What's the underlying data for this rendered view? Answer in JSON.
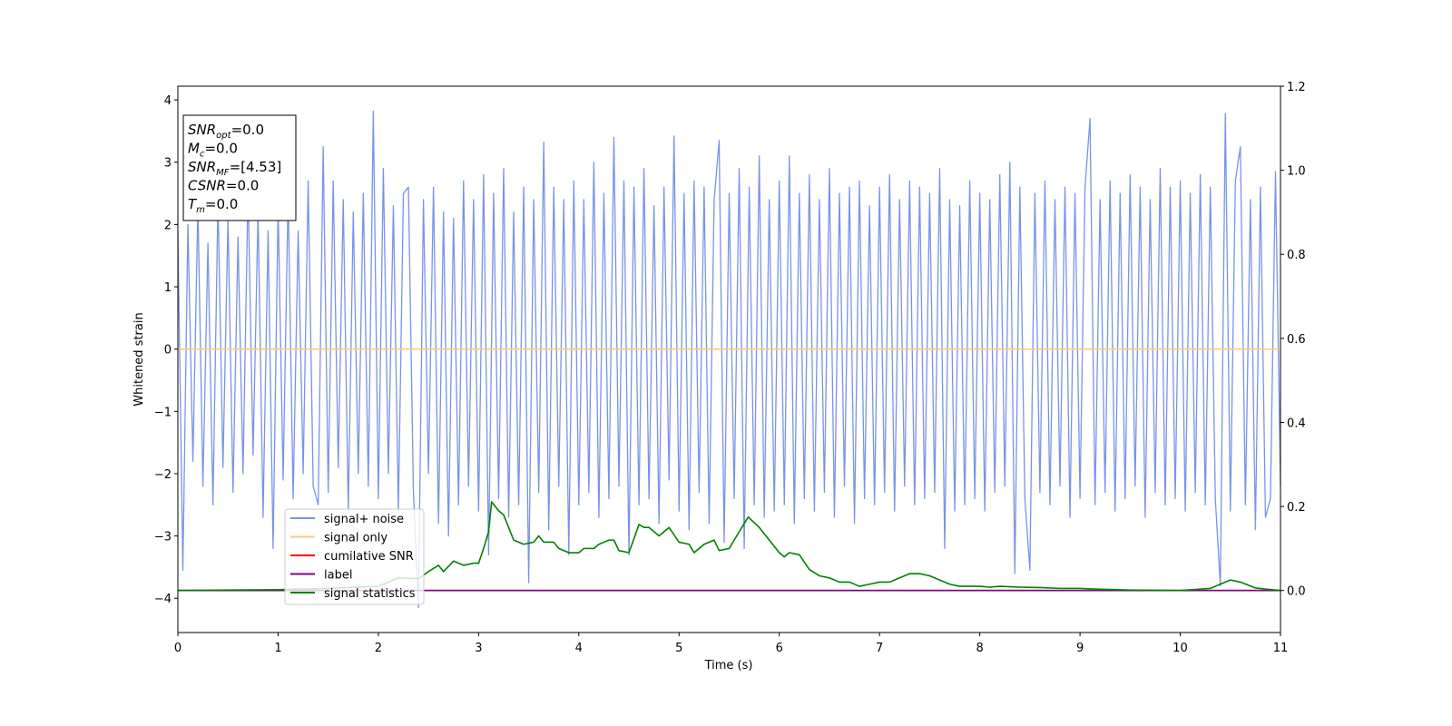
{
  "chart_data": {
    "type": "line",
    "xlabel": "Time (s)",
    "ylabel": "Whitened strain",
    "xlim": [
      0,
      11
    ],
    "xticks": [
      0,
      1,
      2,
      3,
      4,
      5,
      6,
      7,
      8,
      9,
      10,
      11
    ],
    "ylim": [
      -4.55,
      4.22
    ],
    "yticks": [
      {
        "value": -4,
        "label": "−4"
      },
      {
        "value": -3,
        "label": "−3"
      },
      {
        "value": -2,
        "label": "−2"
      },
      {
        "value": -1,
        "label": "−1"
      },
      0,
      1,
      2,
      3,
      4
    ],
    "y2lim": [
      -0.1,
      1.2
    ],
    "y2ticks": [
      {
        "value": 0,
        "label": "0.0"
      },
      {
        "value": 0.2,
        "label": "0.2"
      },
      {
        "value": 0.4,
        "label": "0.4"
      },
      {
        "value": 0.6,
        "label": "0.6"
      },
      {
        "value": 0.8,
        "label": "0.8"
      },
      {
        "value": 1,
        "label": "1.0"
      },
      {
        "value": 1.2,
        "label": "1.2"
      }
    ],
    "legend": "lower left",
    "annotations": [
      {
        "base": "SNR",
        "sub": "opt",
        "text": "=0.0"
      },
      {
        "base": "M",
        "sub": "c",
        "text": "=0.0"
      },
      {
        "base": "SNR",
        "sub": "MF",
        "text": "=[4.53]"
      },
      {
        "base": "CSNR",
        "text": "=0.0"
      },
      {
        "base": "T",
        "sub": "m",
        "text": "=0.0"
      }
    ],
    "series": [
      {
        "name": "signal+ noise",
        "color": "#7893e8",
        "x": [
          0,
          0.05,
          0.1,
          0.15,
          0.2,
          0.25,
          0.3,
          0.35,
          0.4,
          0.45,
          0.5,
          0.55,
          0.6,
          0.65,
          0.7,
          0.75,
          0.8,
          0.85,
          0.9,
          0.95,
          1,
          1.05,
          1.1,
          1.15,
          1.2,
          1.25,
          1.3,
          1.35,
          1.4,
          1.45,
          1.5,
          1.55,
          1.6,
          1.65,
          1.7,
          1.75,
          1.8,
          1.85,
          1.9,
          1.95,
          2,
          2.05,
          2.1,
          2.15,
          2.2,
          2.25,
          2.3,
          2.35,
          2.4,
          2.45,
          2.5,
          2.55,
          2.6,
          2.65,
          2.7,
          2.75,
          2.8,
          2.85,
          2.9,
          2.95,
          3,
          3.05,
          3.1,
          3.15,
          3.2,
          3.25,
          3.3,
          3.35,
          3.4,
          3.45,
          3.5,
          3.55,
          3.6,
          3.65,
          3.7,
          3.75,
          3.8,
          3.85,
          3.9,
          3.95,
          4,
          4.05,
          4.1,
          4.15,
          4.2,
          4.25,
          4.3,
          4.35,
          4.4,
          4.45,
          4.5,
          4.55,
          4.6,
          4.65,
          4.7,
          4.75,
          4.8,
          4.85,
          4.9,
          4.95,
          5,
          5.05,
          5.1,
          5.15,
          5.2,
          5.25,
          5.3,
          5.35,
          5.4,
          5.45,
          5.5,
          5.55,
          5.6,
          5.65,
          5.7,
          5.75,
          5.8,
          5.85,
          5.9,
          5.95,
          6,
          6.05,
          6.1,
          6.15,
          6.2,
          6.25,
          6.3,
          6.35,
          6.4,
          6.45,
          6.5,
          6.55,
          6.6,
          6.65,
          6.7,
          6.75,
          6.8,
          6.85,
          6.9,
          6.95,
          7,
          7.05,
          7.1,
          7.15,
          7.2,
          7.25,
          7.3,
          7.35,
          7.4,
          7.45,
          7.5,
          7.55,
          7.6,
          7.65,
          7.7,
          7.75,
          7.8,
          7.85,
          7.9,
          7.95,
          8,
          8.05,
          8.1,
          8.15,
          8.2,
          8.25,
          8.3,
          8.35,
          8.4,
          8.45,
          8.5,
          8.55,
          8.6,
          8.65,
          8.7,
          8.75,
          8.8,
          8.85,
          8.9,
          8.95,
          9,
          9.05,
          9.1,
          9.15,
          9.2,
          9.25,
          9.3,
          9.35,
          9.4,
          9.45,
          9.5,
          9.55,
          9.6,
          9.65,
          9.7,
          9.75,
          9.8,
          9.85,
          9.9,
          9.95,
          10,
          10.05,
          10.1,
          10.15,
          10.2,
          10.25,
          10.3,
          10.35,
          10.4,
          10.45,
          10.5,
          10.55,
          10.6,
          10.65,
          10.7,
          10.75,
          10.8,
          10.85,
          10.9,
          10.95,
          11
        ],
        "values": [
          1.9,
          -3.55,
          2.0,
          -1.8,
          2.3,
          -2.2,
          1.7,
          -2.5,
          2.4,
          -1.9,
          2.1,
          -2.3,
          1.8,
          -2.0,
          2.6,
          -1.7,
          2.2,
          -2.7,
          1.9,
          -3.2,
          2.3,
          -2.1,
          2.5,
          -2.4,
          1.9,
          -2.0,
          2.7,
          -2.2,
          -2.5,
          3.25,
          -2.3,
          2.7,
          -1.9,
          2.4,
          -2.6,
          2.2,
          -2.0,
          2.5,
          -2.2,
          3.82,
          -2.4,
          2.9,
          -2.0,
          2.3,
          -2.6,
          2.5,
          2.6,
          -2.3,
          -4.15,
          2.4,
          -2.0,
          2.6,
          -2.8,
          2.2,
          -3.0,
          2.1,
          -2.5,
          2.7,
          -2.2,
          2.4,
          -2.6,
          2.8,
          -3.3,
          2.5,
          -2.4,
          2.9,
          -2.7,
          2.2,
          -2.5,
          2.6,
          -3.75,
          2.4,
          -2.3,
          3.32,
          -2.9,
          2.6,
          -2.2,
          2.4,
          -3.3,
          2.7,
          -2.5,
          2.4,
          -2.3,
          3.0,
          -2.7,
          2.5,
          -2.4,
          3.4,
          -2.2,
          2.7,
          -3.3,
          2.6,
          -2.5,
          2.9,
          -2.4,
          2.3,
          -2.8,
          2.6,
          -2.1,
          3.42,
          -2.6,
          2.5,
          -2.9,
          2.7,
          -2.3,
          2.6,
          -2.8,
          2.4,
          3.35,
          -3.1,
          2.5,
          -2.4,
          2.9,
          -3.2,
          2.6,
          -2.5,
          3.1,
          -2.7,
          2.4,
          -2.6,
          2.7,
          -2.5,
          3.1,
          -2.8,
          2.5,
          -2.4,
          2.8,
          -2.6,
          2.4,
          -2.3,
          2.9,
          -2.7,
          2.5,
          -2.2,
          2.6,
          -2.8,
          2.7,
          -2.4,
          2.3,
          -2.5,
          2.6,
          -2.3,
          2.8,
          -2.6,
          2.4,
          -2.2,
          2.7,
          -2.5,
          2.6,
          -2.4,
          2.5,
          -2.3,
          2.9,
          -3.2,
          2.4,
          -2.6,
          2.3,
          -2.5,
          2.7,
          -2.4,
          2.5,
          -2.6,
          2.4,
          -2.3,
          2.8,
          -2.2,
          3.0,
          -3.6,
          2.6,
          -2.4,
          -3.55,
          2.5,
          -2.3,
          2.7,
          -2.5,
          2.4,
          -2.2,
          2.6,
          -2.7,
          2.5,
          -2.4,
          2.6,
          3.7,
          -2.5,
          2.4,
          -2.3,
          2.7,
          -2.6,
          2.5,
          -2.4,
          2.8,
          -2.2,
          2.6,
          -2.7,
          2.4,
          -2.3,
          2.9,
          -2.5,
          2.6,
          -2.4,
          2.7,
          -2.6,
          2.5,
          -2.3,
          2.8,
          -2.5,
          2.6,
          -2.4,
          -3.8,
          3.78,
          -2.6,
          2.7,
          3.25,
          -2.5,
          2.4,
          -2.9,
          2.6,
          -2.7,
          -2.4,
          2.85,
          -2.2
        ]
      },
      {
        "name": "signal only",
        "color": "#ffc97f",
        "x": [
          0,
          11
        ],
        "values": [
          0,
          0
        ]
      },
      {
        "name": "cumilative SNR",
        "color": "#ff0000",
        "axis": "y2",
        "x": [
          0,
          11
        ],
        "values": [
          0,
          0
        ]
      },
      {
        "name": "label",
        "color": "#800080",
        "axis": "y2",
        "x": [
          0,
          11
        ],
        "values": [
          0,
          0
        ]
      },
      {
        "name": "signal statistics",
        "color": "#008000",
        "axis": "y2",
        "x": [
          0,
          0.5,
          1,
          1.5,
          2,
          2.2,
          2.4,
          2.5,
          2.6,
          2.65,
          2.75,
          2.85,
          2.95,
          3,
          3.05,
          3.1,
          3.13,
          3.2,
          3.25,
          3.35,
          3.45,
          3.55,
          3.6,
          3.65,
          3.75,
          3.8,
          3.9,
          4,
          4.05,
          4.15,
          4.2,
          4.3,
          4.35,
          4.4,
          4.5,
          4.6,
          4.65,
          4.7,
          4.8,
          4.9,
          5,
          5.1,
          5.15,
          5.25,
          5.35,
          5.4,
          5.5,
          5.55,
          5.6,
          5.69,
          5.8,
          5.9,
          6,
          6.05,
          6.1,
          6.2,
          6.3,
          6.4,
          6.5,
          6.6,
          6.7,
          6.8,
          6.9,
          7,
          7.1,
          7.2,
          7.3,
          7.4,
          7.5,
          7.6,
          7.7,
          7.8,
          8,
          8.1,
          8.2,
          8.4,
          8.6,
          8.8,
          9,
          9.2,
          9.5,
          10,
          10.3,
          10.5,
          10.6,
          10.75,
          11
        ],
        "values": [
          0,
          0.001,
          0.002,
          0.005,
          0.01,
          0.03,
          0.028,
          0.045,
          0.06,
          0.045,
          0.07,
          0.06,
          0.065,
          0.065,
          0.1,
          0.14,
          0.211,
          0.19,
          0.18,
          0.12,
          0.11,
          0.115,
          0.13,
          0.115,
          0.115,
          0.1,
          0.09,
          0.09,
          0.1,
          0.1,
          0.11,
          0.12,
          0.12,
          0.095,
          0.09,
          0.157,
          0.15,
          0.15,
          0.13,
          0.15,
          0.115,
          0.11,
          0.09,
          0.11,
          0.12,
          0.095,
          0.1,
          0.12,
          0.14,
          0.175,
          0.15,
          0.12,
          0.09,
          0.08,
          0.09,
          0.085,
          0.05,
          0.035,
          0.03,
          0.02,
          0.02,
          0.01,
          0.015,
          0.02,
          0.02,
          0.03,
          0.04,
          0.04,
          0.035,
          0.025,
          0.015,
          0.01,
          0.01,
          0.008,
          0.01,
          0.008,
          0.007,
          0.005,
          0.005,
          0.003,
          0.001,
          0,
          0.005,
          0.025,
          0.02,
          0.006,
          0
        ]
      }
    ]
  }
}
